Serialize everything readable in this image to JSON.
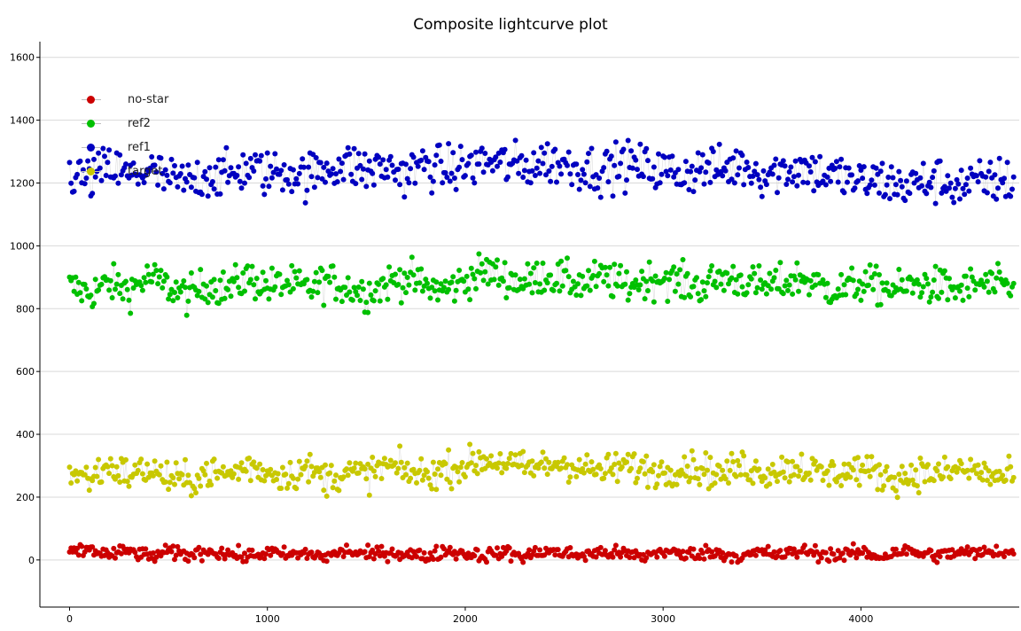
{
  "title": "Composite lightcurve plot",
  "legend": [
    {
      "name": "no-star",
      "color": "#cc0000"
    },
    {
      "name": "ref2",
      "color": "#00c000"
    },
    {
      "name": "ref1",
      "color": "#0000c0"
    },
    {
      "name": "target",
      "color": "#c8c800"
    }
  ],
  "chart_data": {
    "type": "scatter",
    "title": "Composite lightcurve plot",
    "xlabel": "",
    "ylabel": "",
    "xlim": [
      -150,
      4800
    ],
    "ylim": [
      -150,
      1650
    ],
    "x_ticks": [
      0,
      1000,
      2000,
      3000,
      4000
    ],
    "y_ticks": [
      0,
      200,
      400,
      600,
      800,
      1000,
      1200,
      1400,
      1600
    ],
    "grid": "horizontal",
    "legend_position": "top-left",
    "connecting_line_color": "#c8c8c8",
    "series": [
      {
        "name": "no-star",
        "color": "#cc0000",
        "x": [
          0,
          100,
          200,
          300,
          400,
          500,
          600,
          700,
          800,
          900,
          1000,
          1100,
          1200,
          1300,
          1400,
          1500,
          1600,
          1700,
          1800,
          1900,
          2000,
          2100,
          2200,
          2300,
          2400,
          2500,
          2600,
          2700,
          2800,
          2900,
          3000,
          3100,
          3200,
          3300,
          3400,
          3500,
          3600,
          3700,
          3800,
          3900,
          4000,
          4100,
          4200,
          4300,
          4400,
          4500,
          4600,
          4700,
          4780
        ],
        "y": [
          20,
          35,
          15,
          30,
          10,
          25,
          15,
          30,
          20,
          10,
          25,
          15,
          20,
          10,
          30,
          15,
          25,
          20,
          10,
          30,
          20,
          15,
          25,
          10,
          30,
          20,
          15,
          25,
          20,
          10,
          30,
          15,
          25,
          20,
          10,
          25,
          15,
          30,
          20,
          15,
          25,
          10,
          30,
          20,
          15,
          25,
          20,
          30,
          20
        ]
      },
      {
        "name": "ref2",
        "color": "#00c000",
        "x": [
          0,
          100,
          200,
          300,
          400,
          500,
          600,
          700,
          800,
          900,
          1000,
          1100,
          1200,
          1300,
          1400,
          1500,
          1600,
          1700,
          1800,
          1900,
          2000,
          2100,
          2200,
          2300,
          2400,
          2500,
          2600,
          2700,
          2800,
          2900,
          3000,
          3100,
          3200,
          3300,
          3400,
          3500,
          3600,
          3700,
          3800,
          3900,
          4000,
          4100,
          4200,
          4300,
          4400,
          4500,
          4600,
          4700,
          4780
        ],
        "y": [
          870,
          850,
          880,
          860,
          900,
          870,
          840,
          880,
          860,
          900,
          870,
          880,
          860,
          890,
          870,
          850,
          880,
          900,
          870,
          860,
          890,
          920,
          900,
          880,
          910,
          890,
          880,
          900,
          870,
          890,
          900,
          880,
          870,
          900,
          890,
          870,
          880,
          900,
          870,
          860,
          880,
          870,
          860,
          880,
          870,
          860,
          880,
          870,
          860
        ]
      },
      {
        "name": "ref1",
        "color": "#0000c0",
        "x": [
          0,
          100,
          200,
          300,
          400,
          500,
          600,
          700,
          800,
          900,
          1000,
          1100,
          1200,
          1300,
          1400,
          1500,
          1600,
          1700,
          1800,
          1900,
          2000,
          2100,
          2200,
          2300,
          2400,
          2500,
          2600,
          2700,
          2800,
          2900,
          3000,
          3100,
          3200,
          3300,
          3400,
          3500,
          3600,
          3700,
          3800,
          3900,
          4000,
          4100,
          4200,
          4300,
          4400,
          4500,
          4600,
          4700,
          4780
        ],
        "y": [
          1230,
          1210,
          1250,
          1220,
          1240,
          1210,
          1200,
          1230,
          1220,
          1250,
          1230,
          1240,
          1220,
          1250,
          1260,
          1240,
          1250,
          1230,
          1260,
          1240,
          1250,
          1270,
          1260,
          1250,
          1270,
          1260,
          1250,
          1240,
          1260,
          1250,
          1240,
          1230,
          1250,
          1240,
          1260,
          1230,
          1240,
          1250,
          1230,
          1220,
          1200,
          1210,
          1190,
          1200,
          1210,
          1190,
          1200,
          1210,
          1200
        ]
      },
      {
        "name": "target",
        "color": "#c8c800",
        "x": [
          0,
          100,
          200,
          300,
          400,
          500,
          600,
          700,
          800,
          900,
          1000,
          1100,
          1200,
          1300,
          1400,
          1500,
          1600,
          1700,
          1800,
          1900,
          2000,
          2100,
          2200,
          2300,
          2400,
          2500,
          2600,
          2700,
          2800,
          2900,
          3000,
          3100,
          3200,
          3300,
          3400,
          3500,
          3600,
          3700,
          3800,
          3900,
          4000,
          4100,
          4200,
          4300,
          4400,
          4500,
          4600,
          4700,
          4780
        ],
        "y": [
          280,
          260,
          300,
          270,
          290,
          260,
          250,
          280,
          270,
          300,
          280,
          270,
          290,
          260,
          280,
          270,
          300,
          280,
          270,
          290,
          300,
          320,
          310,
          290,
          300,
          310,
          290,
          280,
          300,
          290,
          280,
          300,
          290,
          270,
          300,
          280,
          290,
          300,
          270,
          280,
          290,
          270,
          260,
          280,
          270,
          290,
          280,
          260,
          270
        ]
      }
    ]
  }
}
